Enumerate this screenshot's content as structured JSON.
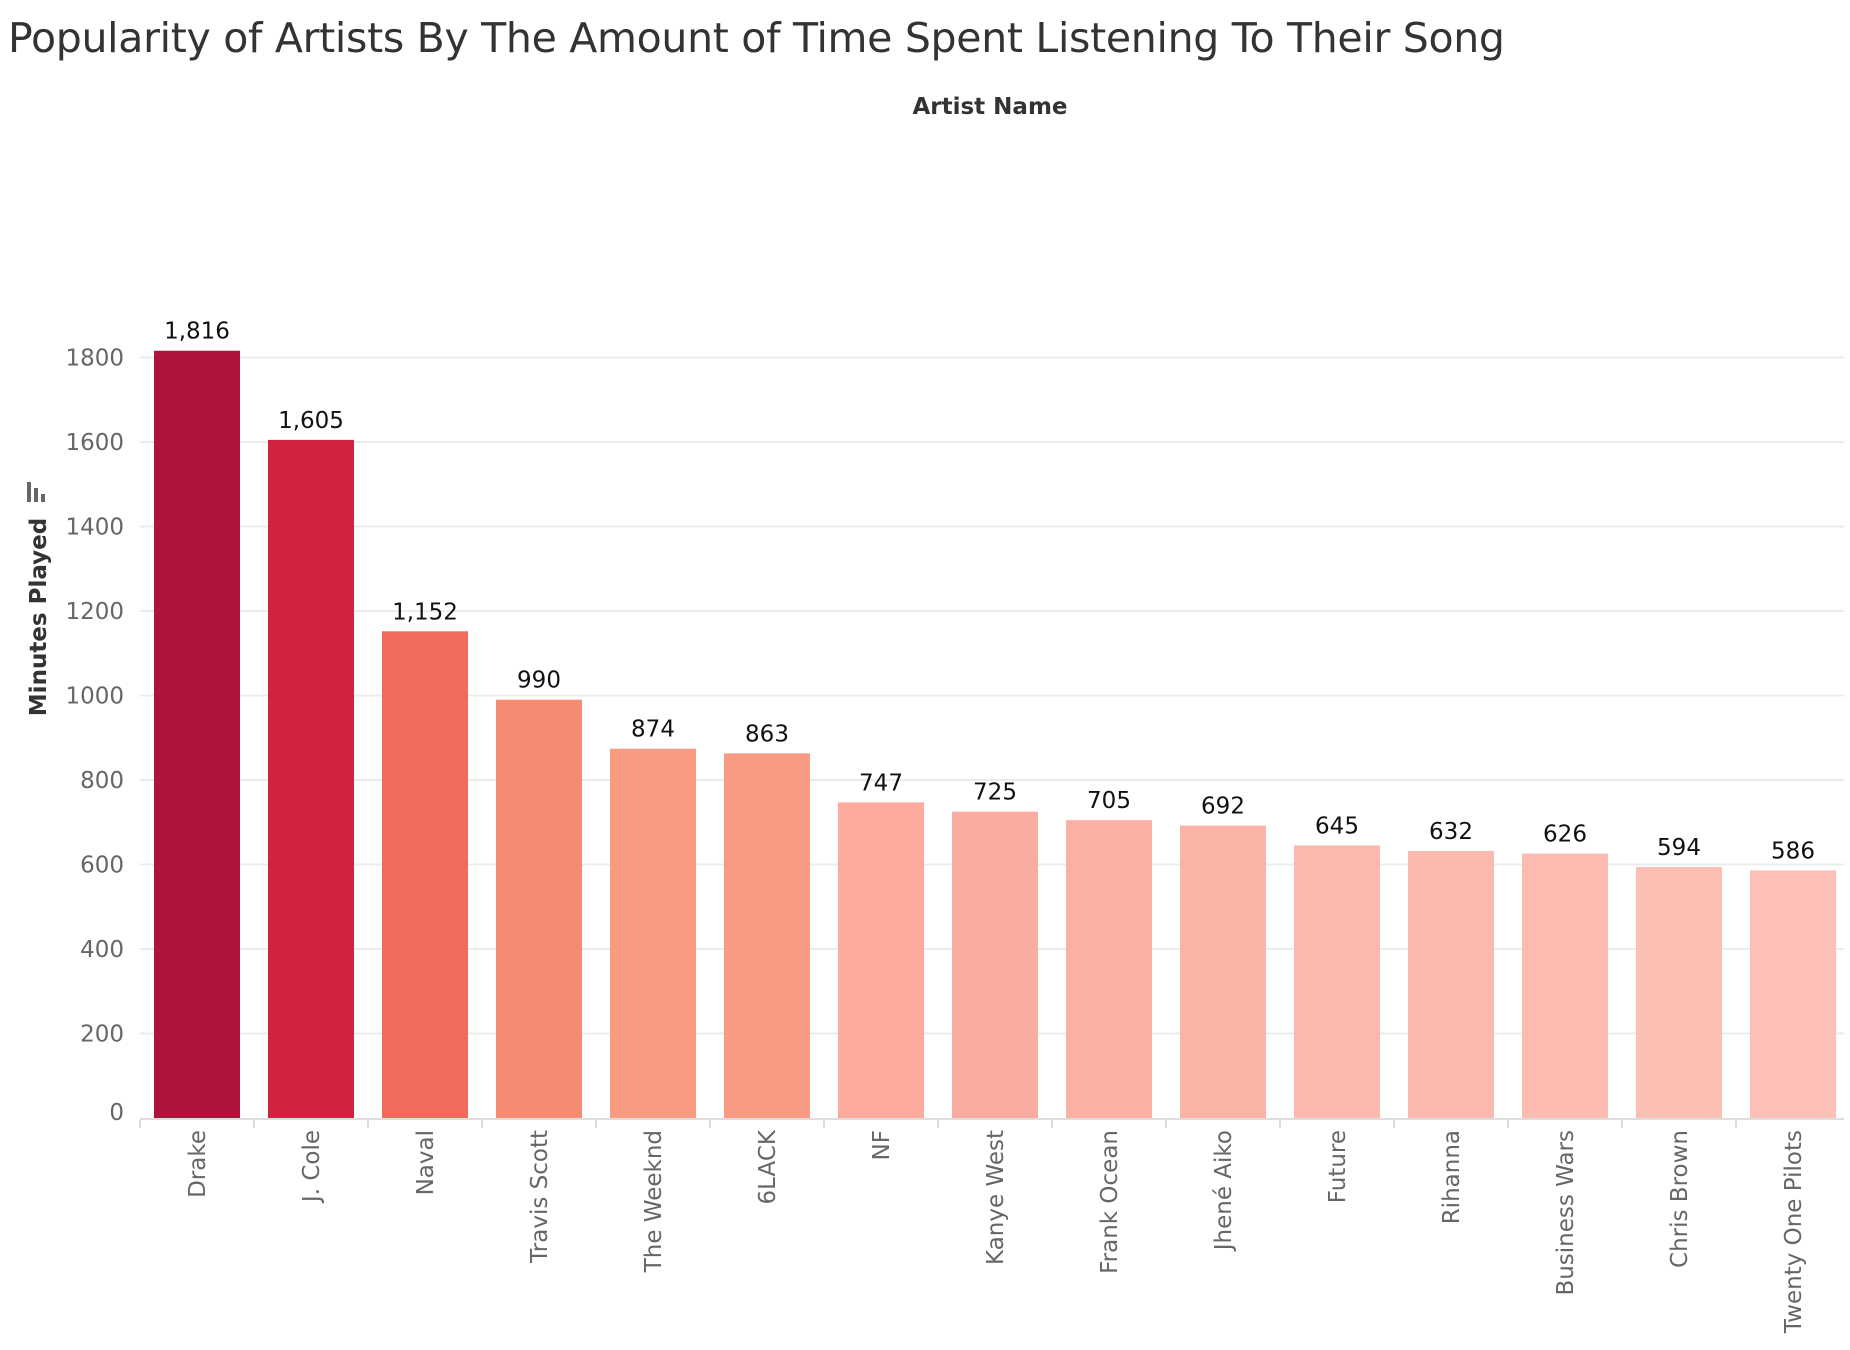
{
  "chart_data": {
    "type": "bar",
    "title": "Popularity of Artists By The Amount of Time Spent Listening To Their Song",
    "column_header": "Artist Name",
    "ylabel": "Minutes Played",
    "ylim": [
      0,
      1800
    ],
    "yticks": [
      0,
      200,
      400,
      600,
      800,
      1000,
      1200,
      1400,
      1600,
      1800
    ],
    "grid": true,
    "categories": [
      "Drake",
      "J. Cole",
      "Naval",
      "Travis Scott",
      "The Weeknd",
      "6LACK",
      "NF",
      "Kanye West",
      "Frank Ocean",
      "Jhené Aiko",
      "Future",
      "Rihanna",
      "Business Wars",
      "Chris Brown",
      "Twenty One Pilots"
    ],
    "values": [
      1816,
      1605,
      1152,
      990,
      874,
      863,
      747,
      725,
      705,
      692,
      645,
      632,
      626,
      594,
      586
    ],
    "value_labels": [
      "1,816",
      "1,605",
      "1,152",
      "990",
      "874",
      "863",
      "747",
      "725",
      "705",
      "692",
      "645",
      "632",
      "626",
      "594",
      "586"
    ],
    "colors": [
      "#B0133A",
      "#CF2340",
      "#F26A5B",
      "#F78A72",
      "#F99A82",
      "#F99A82",
      "#FBAA9C",
      "#FBACA0",
      "#FBB0A3",
      "#FBB3A6",
      "#FBB8AC",
      "#FBBAAE",
      "#FCBBAF",
      "#FCBFB4",
      "#FCC0B6"
    ],
    "sort_icon": "sort-descending-icon"
  }
}
